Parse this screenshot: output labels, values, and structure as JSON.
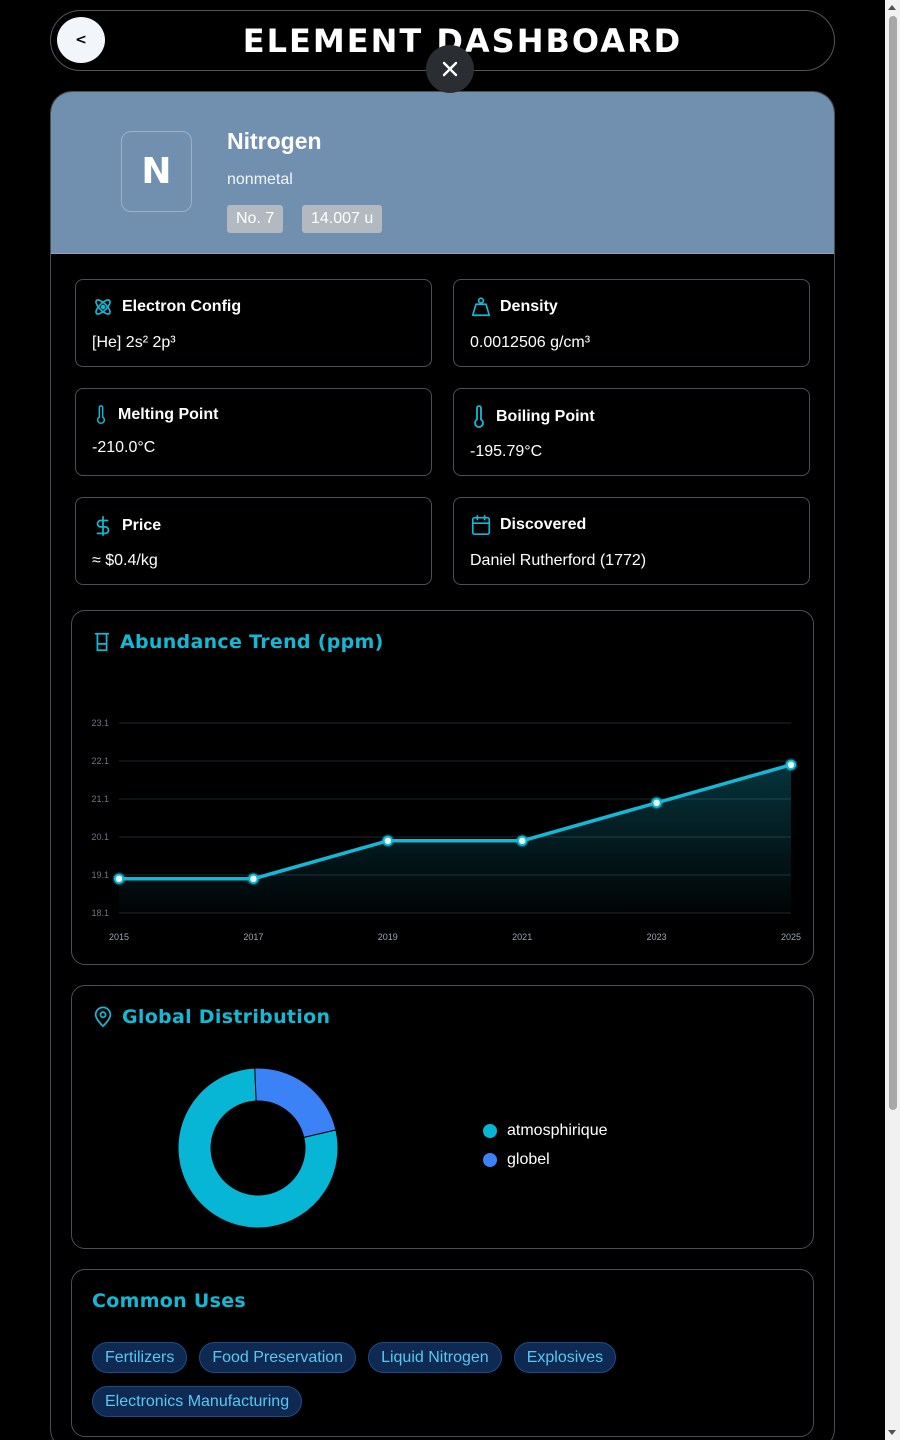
{
  "header": {
    "back_label": "<",
    "title": "ELEMENT DASHBOARD"
  },
  "element": {
    "symbol": "N",
    "name": "Nitrogen",
    "category": "nonmetal",
    "number_label": "No. 7",
    "mass_label": "14.007 u"
  },
  "properties": [
    {
      "label": "Electron Config",
      "value": "[He] 2s² 2p³",
      "icon": "atom-icon"
    },
    {
      "label": "Density",
      "value": "0.0012506 g/cm³",
      "icon": "weight-icon"
    },
    {
      "label": "Melting Point",
      "value": "-210.0°C",
      "icon": "thermometer-icon"
    },
    {
      "label": "Boiling Point",
      "value": "-195.79°C",
      "icon": "thermometer-icon"
    },
    {
      "label": "Price",
      "value": "≈ $0.4/kg",
      "icon": "dollar-icon"
    },
    {
      "label": "Discovered",
      "value": "Daniel Rutherford (1772)",
      "icon": "calendar-icon"
    }
  ],
  "abundance": {
    "title": "Abundance Trend (ppm)",
    "icon": "beaker-icon"
  },
  "distribution": {
    "title": "Global Distribution",
    "icon": "map-pin-icon"
  },
  "uses": {
    "title": "Common Uses",
    "items": [
      "Fertilizers",
      "Food Preservation",
      "Liquid Nitrogen",
      "Explosives",
      "Electronics Manufacturing"
    ]
  },
  "colors": {
    "accent": "#14b8d4",
    "secondary": "#3b82f6",
    "hero": "#7190b0"
  },
  "chart_data": [
    {
      "type": "area",
      "title": "Abundance Trend (ppm)",
      "x": [
        2015,
        2017,
        2019,
        2021,
        2023,
        2025
      ],
      "series": [
        {
          "values": [
            19,
            19,
            20,
            20,
            21,
            22
          ]
        }
      ],
      "y_ticks": [
        "18.1",
        "19.1",
        "20.1",
        "21.1",
        "22.1",
        "23.1"
      ],
      "x_ticks": [
        "2015",
        "2017",
        "2019",
        "2021",
        "2023",
        "2025"
      ],
      "ylim": [
        18.1,
        23.1
      ],
      "grid": true,
      "color": "#14b8d4"
    },
    {
      "type": "pie",
      "title": "Global Distribution",
      "donut": true,
      "labels": [
        "atmosphirique",
        "globel"
      ],
      "values": [
        78,
        22
      ],
      "colors": [
        "#06b6d4",
        "#3b82f6"
      ],
      "legend": "right"
    }
  ]
}
